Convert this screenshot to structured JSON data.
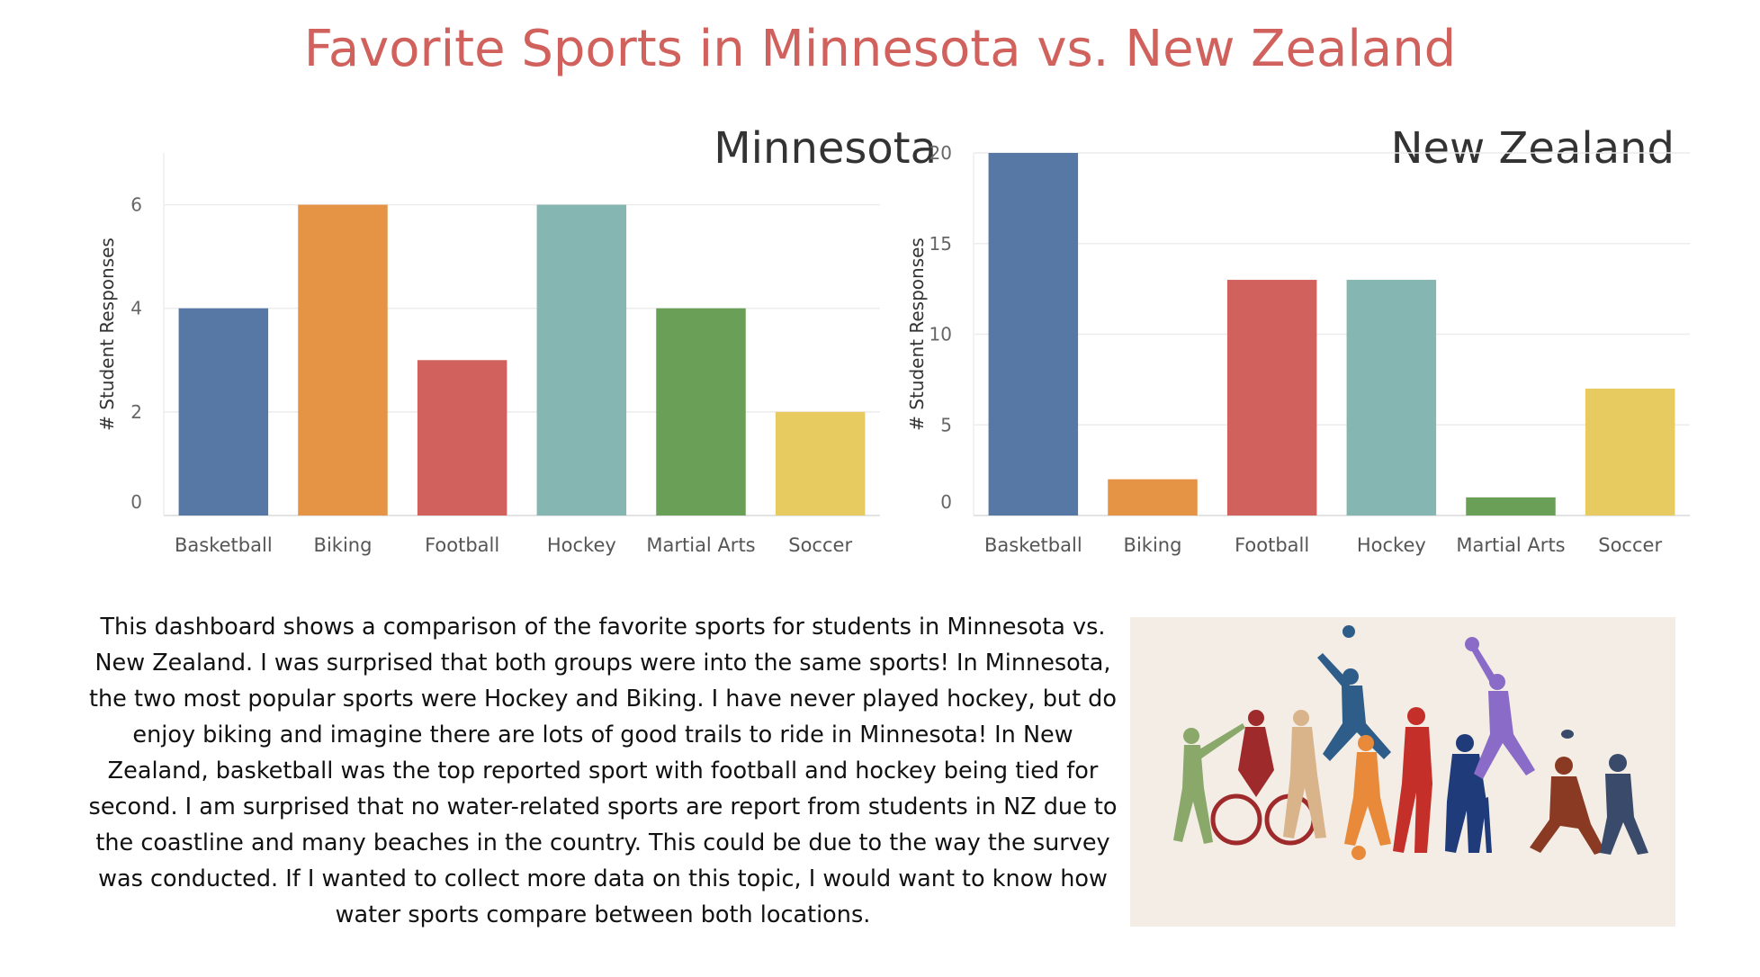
{
  "title": "Favorite Sports in Minnesota vs. New Zealand",
  "colors": {
    "title": "#d1615d",
    "Basketball": "#5778a4",
    "Biking": "#e49444",
    "Football": "#d1615d",
    "Hockey": "#85b6b2",
    "Martial Arts": "#6a9f58",
    "Soccer": "#e7ca60"
  },
  "chart_data": [
    {
      "type": "bar",
      "title": "Minnesota",
      "ylabel": "# Student Responses",
      "xlabel": "",
      "categories": [
        "Basketball",
        "Biking",
        "Football",
        "Hockey",
        "Martial Arts",
        "Soccer"
      ],
      "values": [
        4,
        6,
        3,
        6,
        4,
        2
      ],
      "yticks": [
        0,
        2,
        4,
        6
      ],
      "ylim": [
        0,
        7
      ],
      "grid": true,
      "legend": "none"
    },
    {
      "type": "bar",
      "title": "New Zealand",
      "ylabel": "# Student Responses",
      "xlabel": "",
      "categories": [
        "Basketball",
        "Biking",
        "Football",
        "Hockey",
        "Martial Arts",
        "Soccer"
      ],
      "values": [
        20,
        2,
        13,
        13,
        1,
        7
      ],
      "yticks": [
        0,
        5,
        10,
        15,
        20
      ],
      "ylim": [
        0,
        20
      ],
      "grid": true,
      "legend": "none"
    }
  ],
  "description": "This dashboard shows a comparison of the favorite sports for students in Minnesota vs. New Zealand. I was surprised that both groups were into the same sports! In Minnesota, the two most popular sports were Hockey and Biking. I have never played hockey, but do enjoy biking and imagine there are lots of good trails to ride in Minnesota! In New Zealand, basketball was the top reported sport with football and hockey being tied for second. I am surprised that no water-related sports are report from students in NZ due to the coastline and many beaches in the country. This could be due to the way the survey was conducted. If I wanted to collect more data on this topic, I would want to know how water sports compare between both locations.",
  "illustration": {
    "icon": "sports-silhouettes-illustration"
  }
}
